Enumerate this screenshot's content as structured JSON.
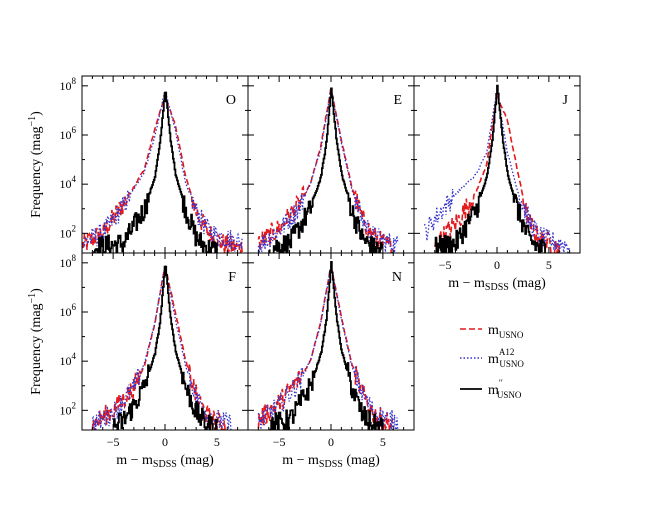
{
  "chart_data": {
    "type": "line",
    "panels": [
      {
        "id": "O",
        "label": "O"
      },
      {
        "id": "E",
        "label": "E"
      },
      {
        "id": "J",
        "label": "J"
      },
      {
        "id": "F",
        "label": "F"
      },
      {
        "id": "N",
        "label": "N"
      }
    ],
    "xlabel_main": "m − m",
    "xlabel_sub": "SDSS",
    "xlabel_tail": " (mag)",
    "ylabel_main": "Frequency (mag",
    "ylabel_sup": "−1",
    "ylabel_tail": ")",
    "xlim": [
      -8,
      8
    ],
    "ylim_log10": [
      1.2,
      8.4
    ],
    "x_ticks": [
      -5,
      0,
      5
    ],
    "x_tick_labels": [
      "−5",
      "0",
      "5"
    ],
    "y_ticks_log10": [
      2,
      4,
      6,
      8
    ],
    "y_tick_bases": [
      "10",
      "10",
      "10",
      "10"
    ],
    "y_tick_exps": [
      "2",
      "4",
      "6",
      "8"
    ],
    "series": [
      {
        "name_base": "m",
        "name_sub": "USNO",
        "name_sup": "",
        "color": "#e41a1c",
        "dash": "dashed"
      },
      {
        "name_base": "m",
        "name_sub": "USNO",
        "name_sup": "A12",
        "color": "#3333cc",
        "dash": "dotted"
      },
      {
        "name_base": "m",
        "name_sub": "USNO",
        "name_sup": "′′",
        "color": "#000000",
        "dash": "solid"
      }
    ],
    "curves": {
      "O": {
        "red": {
          "peak": -0.3,
          "amp": 7.6,
          "ws": [
            [
              -8,
              1.5
            ],
            [
              -6,
              2.0
            ],
            [
              -4,
              3.2
            ],
            [
              -2,
              4.6
            ],
            [
              -1,
              6.2
            ],
            [
              0,
              7.6
            ],
            [
              1,
              6.4
            ],
            [
              2,
              4.3
            ],
            [
              3,
              2.9
            ],
            [
              4,
              2.1
            ],
            [
              5,
              1.7
            ],
            [
              6,
              1.5
            ],
            [
              7.5,
              1.4
            ]
          ]
        },
        "blue": {
          "ws": [
            [
              -8,
              1.6
            ],
            [
              -6,
              2.0
            ],
            [
              -4,
              3.1
            ],
            [
              -2,
              4.5
            ],
            [
              -1,
              5.9
            ],
            [
              0,
              7.8
            ],
            [
              1,
              6.2
            ],
            [
              2,
              4.0
            ],
            [
              3,
              2.9
            ],
            [
              4,
              2.2
            ],
            [
              5,
              1.9
            ],
            [
              6,
              1.8
            ],
            [
              7.5,
              1.6
            ]
          ]
        },
        "black": {
          "ws": [
            [
              -7,
              1.4
            ],
            [
              -4,
              1.6
            ],
            [
              -3,
              2.3
            ],
            [
              -2,
              3.0
            ],
            [
              -1,
              4.3
            ],
            [
              -0.5,
              5.7
            ],
            [
              0,
              7.9
            ],
            [
              0.5,
              5.8
            ],
            [
              1,
              4.4
            ],
            [
              2,
              2.9
            ],
            [
              3,
              1.8
            ],
            [
              4,
              1.4
            ],
            [
              5,
              1.3
            ]
          ]
        }
      },
      "E": {
        "red": {
          "ws": [
            [
              -7,
              1.6
            ],
            [
              -5,
              2.2
            ],
            [
              -3,
              3.2
            ],
            [
              -2,
              4.0
            ],
            [
              -1,
              5.5
            ],
            [
              0,
              7.9
            ],
            [
              1,
              5.8
            ],
            [
              2,
              3.9
            ],
            [
              3,
              2.6
            ],
            [
              4,
              1.9
            ],
            [
              5,
              1.6
            ],
            [
              6,
              1.4
            ]
          ]
        },
        "blue": {
          "ws": [
            [
              -7,
              1.5
            ],
            [
              -5,
              2.1
            ],
            [
              -3,
              3.1
            ],
            [
              -2,
              4.0
            ],
            [
              -1,
              5.4
            ],
            [
              0,
              7.9
            ],
            [
              1,
              5.7
            ],
            [
              2,
              3.8
            ],
            [
              3,
              2.6
            ],
            [
              4,
              1.9
            ],
            [
              5,
              1.7
            ],
            [
              6.5,
              1.5
            ]
          ]
        },
        "black": {
          "ws": [
            [
              -6,
              1.4
            ],
            [
              -4,
              1.6
            ],
            [
              -3,
              2.3
            ],
            [
              -2,
              3.0
            ],
            [
              -1,
              4.3
            ],
            [
              -0.5,
              5.6
            ],
            [
              0,
              7.9
            ],
            [
              0.5,
              5.8
            ],
            [
              1,
              4.4
            ],
            [
              2,
              2.9
            ],
            [
              3,
              1.8
            ],
            [
              4,
              1.4
            ],
            [
              5,
              1.3
            ]
          ]
        }
      },
      "J": {
        "red": {
          "ws": [
            [
              -6,
              1.5
            ],
            [
              -4,
              2.4
            ],
            [
              -3,
              3.0
            ],
            [
              -2,
              3.7
            ],
            [
              -1,
              4.8
            ],
            [
              0,
              7.6
            ],
            [
              1,
              6.6
            ],
            [
              2,
              4.5
            ],
            [
              3,
              2.5
            ],
            [
              4,
              1.8
            ],
            [
              5,
              1.6
            ],
            [
              6,
              1.4
            ]
          ]
        },
        "blue": {
          "ws": [
            [
              -7,
              2.0
            ],
            [
              -6,
              2.6
            ],
            [
              -4,
              3.6
            ],
            [
              -2,
              4.4
            ],
            [
              -1,
              5.3
            ],
            [
              0,
              7.8
            ],
            [
              1,
              5.3
            ],
            [
              2,
              3.7
            ],
            [
              3,
              2.6
            ],
            [
              4,
              1.9
            ],
            [
              5,
              1.7
            ],
            [
              7,
              1.5
            ]
          ]
        },
        "black": {
          "ws": [
            [
              -6,
              1.4
            ],
            [
              -4,
              1.6
            ],
            [
              -3,
              2.3
            ],
            [
              -2,
              3.0
            ],
            [
              -1,
              4.3
            ],
            [
              -0.5,
              5.7
            ],
            [
              0,
              8.0
            ],
            [
              0.5,
              5.9
            ],
            [
              1,
              4.4
            ],
            [
              2,
              2.9
            ],
            [
              3,
              1.8
            ],
            [
              4,
              1.4
            ],
            [
              5,
              1.3
            ]
          ]
        }
      },
      "F": {
        "red": {
          "ws": [
            [
              -7,
              1.4
            ],
            [
              -5,
              2.0
            ],
            [
              -3,
              2.9
            ],
            [
              -2,
              3.8
            ],
            [
              -1,
              5.5
            ],
            [
              0,
              7.9
            ],
            [
              1,
              6.0
            ],
            [
              2,
              4.0
            ],
            [
              3,
              2.6
            ],
            [
              4,
              1.8
            ],
            [
              5,
              1.5
            ],
            [
              6,
              1.3
            ]
          ]
        },
        "blue": {
          "ws": [
            [
              -7,
              1.4
            ],
            [
              -5,
              1.9
            ],
            [
              -3,
              2.9
            ],
            [
              -2,
              3.9
            ],
            [
              -1,
              5.5
            ],
            [
              0,
              7.9
            ],
            [
              1,
              5.7
            ],
            [
              2,
              3.8
            ],
            [
              3,
              2.6
            ],
            [
              4,
              1.9
            ],
            [
              5,
              1.6
            ],
            [
              6.5,
              1.4
            ]
          ]
        },
        "black": {
          "ws": [
            [
              -5,
              1.3
            ],
            [
              -4,
              1.6
            ],
            [
              -3,
              2.2
            ],
            [
              -2,
              3.0
            ],
            [
              -1,
              4.3
            ],
            [
              -0.5,
              5.6
            ],
            [
              0,
              8.0
            ],
            [
              0.5,
              5.8
            ],
            [
              1,
              4.4
            ],
            [
              2,
              2.9
            ],
            [
              3,
              1.9
            ],
            [
              4,
              1.4
            ],
            [
              5,
              1.3
            ]
          ]
        }
      },
      "N": {
        "red": {
          "ws": [
            [
              -7,
              1.6
            ],
            [
              -5,
              2.3
            ],
            [
              -3,
              3.3
            ],
            [
              -2,
              4.0
            ],
            [
              -1,
              5.6
            ],
            [
              0,
              7.9
            ],
            [
              1,
              5.8
            ],
            [
              2,
              3.9
            ],
            [
              3,
              2.7
            ],
            [
              4,
              1.9
            ],
            [
              5,
              1.6
            ],
            [
              6,
              1.4
            ]
          ]
        },
        "blue": {
          "ws": [
            [
              -7,
              1.5
            ],
            [
              -5,
              2.2
            ],
            [
              -3,
              3.2
            ],
            [
              -2,
              4.0
            ],
            [
              -1,
              5.5
            ],
            [
              0,
              7.9
            ],
            [
              1,
              5.7
            ],
            [
              2,
              3.8
            ],
            [
              3,
              2.7
            ],
            [
              4,
              2.0
            ],
            [
              5,
              1.7
            ],
            [
              6.5,
              1.5
            ]
          ]
        },
        "black": {
          "ws": [
            [
              -6,
              1.4
            ],
            [
              -4,
              1.6
            ],
            [
              -3,
              2.3
            ],
            [
              -2,
              3.0
            ],
            [
              -1,
              4.3
            ],
            [
              -0.5,
              5.6
            ],
            [
              0,
              8.0
            ],
            [
              0.5,
              5.8
            ],
            [
              1,
              4.4
            ],
            [
              2,
              2.9
            ],
            [
              3,
              1.8
            ],
            [
              4,
              1.4
            ],
            [
              5,
              1.3
            ]
          ]
        }
      }
    },
    "legend_placement": "lower-right",
    "grid": false
  }
}
